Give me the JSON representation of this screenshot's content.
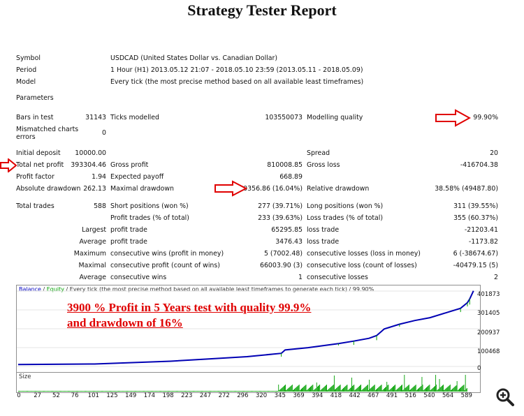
{
  "title": "Strategy Tester Report",
  "info": {
    "symbol_label": "Symbol",
    "symbol_value": "USDCAD (United States Dollar vs. Canadian Dollar)",
    "period_label": "Period",
    "period_value": "1 Hour (H1) 2013.05.12 21:07 - 2018.05.10 23:59 (2013.05.11 - 2018.05.09)",
    "model_label": "Model",
    "model_value": "Every tick (the most precise method based on all available least timeframes)",
    "parameters_label": "Parameters"
  },
  "stats": {
    "bars_label": "Bars in test",
    "bars_value": "31143",
    "ticks_label": "Ticks modelled",
    "ticks_value": "103550073",
    "quality_label": "Modelling quality",
    "quality_value": "99.90%",
    "mismatch_label1": "Mismatched charts",
    "mismatch_label2": "errors",
    "mismatch_value": "0",
    "deposit_label": "Initial deposit",
    "deposit_value": "10000.00",
    "spread_label": "Spread",
    "spread_value": "20",
    "netprofit_label": "Total net profit",
    "netprofit_value": "393304.46",
    "grossprofit_label": "Gross profit",
    "grossprofit_value": "810008.85",
    "grossloss_label": "Gross loss",
    "grossloss_value": "-416704.38",
    "pf_label": "Profit factor",
    "pf_value": "1.94",
    "payoff_label": "Expected payoff",
    "payoff_value": "668.89",
    "absdd_label": "Absolute drawdown",
    "absdd_value": "262.13",
    "maxdd_label": "Maximal drawdown",
    "maxdd_value": "60356.86 (16.04%)",
    "reldd_label": "Relative drawdown",
    "reldd_value": "38.58% (49487.80)",
    "trades_label": "Total trades",
    "trades_value": "588",
    "short_label": "Short positions (won %)",
    "short_value": "277 (39.71%)",
    "long_label": "Long positions (won %)",
    "long_value": "311 (39.55%)",
    "ptrades_label": "Profit trades (% of total)",
    "ptrades_value": "233 (39.63%)",
    "ltrades_label": "Loss trades (% of total)",
    "ltrades_value": "355 (60.37%)",
    "largest_label": "Largest",
    "lpt_label": "profit trade",
    "lpt_value": "65295.85",
    "llt_label": "loss trade",
    "llt_value": "-21203.41",
    "average_label": "Average",
    "apt_label": "profit trade",
    "apt_value": "3476.43",
    "alt_label": "loss trade",
    "alt_value": "-1173.82",
    "maximum_label": "Maximum",
    "mcw_label": "consecutive wins (profit in money)",
    "mcw_value": "5 (7002.48)",
    "mcl_label": "consecutive losses (loss in money)",
    "mcl_value": "6 (-38674.67)",
    "maximal_label": "Maximal",
    "mcp_label": "consecutive profit (count of wins)",
    "mcp_value": "66003.90 (3)",
    "mcloss_label": "consecutive loss (count of losses)",
    "mcloss_value": "-40479.15 (5)",
    "average2_label": "Average",
    "acw_label": "consecutive wins",
    "acw_value": "1",
    "acl_label": "consecutive losses",
    "acl_value": "2"
  },
  "chart": {
    "legend_balance": "Balance",
    "legend_sep": " / ",
    "legend_equity": "Equity",
    "legend_rest": " / Every tick (the most precise method based on all available least timeframes to generate each tick) / 99.90%",
    "annotation_line1": "3900 % Profit in 5 Years test with quality 99.9%",
    "annotation_line2": "and drawdown of 16%",
    "y_ticks": [
      "401873",
      "301405",
      "200937",
      "100468",
      "0"
    ],
    "size_label": "Size",
    "x_ticks": [
      "0",
      "27",
      "52",
      "76",
      "101",
      "125",
      "149",
      "174",
      "198",
      "223",
      "247",
      "272",
      "296",
      "320",
      "345",
      "369",
      "394",
      "418",
      "442",
      "467",
      "491",
      "516",
      "540",
      "564",
      "589"
    ]
  },
  "chart_data": {
    "type": "line",
    "ylim": [
      0,
      401873
    ],
    "xlim": [
      0,
      600
    ],
    "series": [
      {
        "name": "Balance",
        "color": "#0000b4",
        "x": [
          0,
          100,
          200,
          250,
          300,
          345,
          350,
          380,
          420,
          440,
          460,
          470,
          480,
          500,
          520,
          540,
          560,
          580,
          589,
          592,
          597
        ],
        "y": [
          10000,
          13000,
          28000,
          40000,
          52000,
          70000,
          88000,
          100000,
          122000,
          135000,
          150000,
          165000,
          200000,
          225000,
          245000,
          260000,
          285000,
          310000,
          340000,
          360000,
          403000
        ]
      }
    ],
    "colors": {
      "balance": "#0000b4",
      "equity": "#00a000",
      "volume": "#00a000",
      "annotation": "#e00000",
      "arrow": "#e00000"
    }
  }
}
